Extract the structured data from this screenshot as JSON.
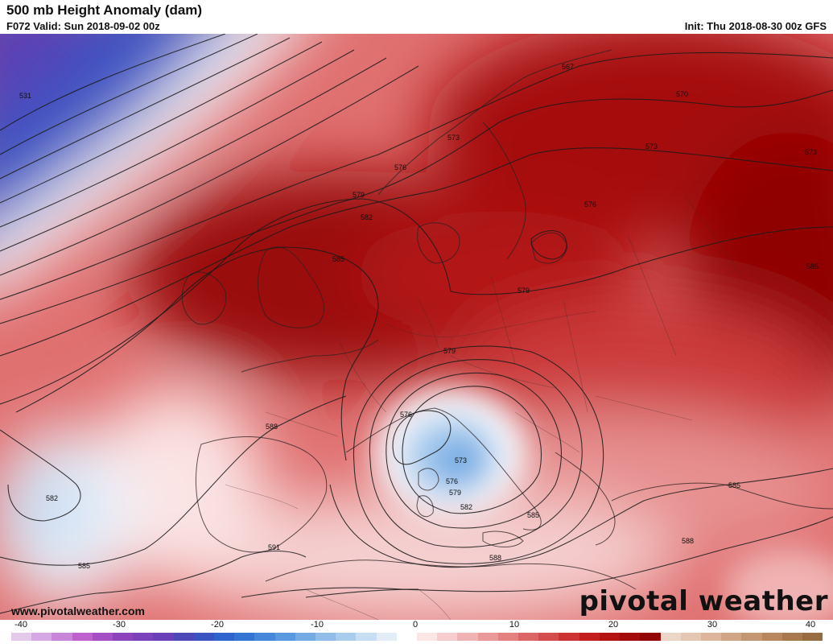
{
  "header": {
    "title": "500 mb Height Anomaly (dam)",
    "valid": "F072 Valid: Sun 2018-09-02 00z",
    "init": "Init: Thu 2018-08-30 00z GFS"
  },
  "footer": {
    "website": "www.pivotalweather.com",
    "logo_text": "pivotal weather"
  },
  "map": {
    "field": "500 mb height anomaly",
    "units": "dam",
    "region": "Europe, North Atlantic and North Africa",
    "contour_labels": [
      "531",
      "567",
      "570",
      "573",
      "573",
      "573",
      "573",
      "576",
      "576",
      "576",
      "576",
      "579",
      "579",
      "579",
      "579",
      "582",
      "582",
      "582",
      "585",
      "585",
      "585",
      "585",
      "585",
      "588",
      "588",
      "588",
      "591"
    ]
  },
  "colorbar": {
    "tick_labels": [
      "-40",
      "-30",
      "-20",
      "-10",
      "0",
      "10",
      "20",
      "30",
      "40"
    ],
    "colors": [
      "#e3c9ea",
      "#d6a8e3",
      "#c985d8",
      "#bd62cc",
      "#a54fc4",
      "#8d44bd",
      "#7c42bb",
      "#6a3fb7",
      "#4d47b8",
      "#3a55c2",
      "#2f64cc",
      "#3475d4",
      "#4587da",
      "#5a99df",
      "#74abe3",
      "#8fbde8",
      "#aacdee",
      "#c6ddf3",
      "#e2edf8",
      "#ffffff",
      "#fbe6e6",
      "#f6cccc",
      "#f0b3b3",
      "#ea9999",
      "#e38080",
      "#dc6666",
      "#d44d4d",
      "#cc3434",
      "#c41d1d",
      "#b51212",
      "#a40c0c",
      "#930606",
      "#ecd6c8",
      "#e5c6b2",
      "#dcb59c",
      "#d1a586",
      "#c59672",
      "#b8875f",
      "#a8794f",
      "#986b41"
    ]
  }
}
